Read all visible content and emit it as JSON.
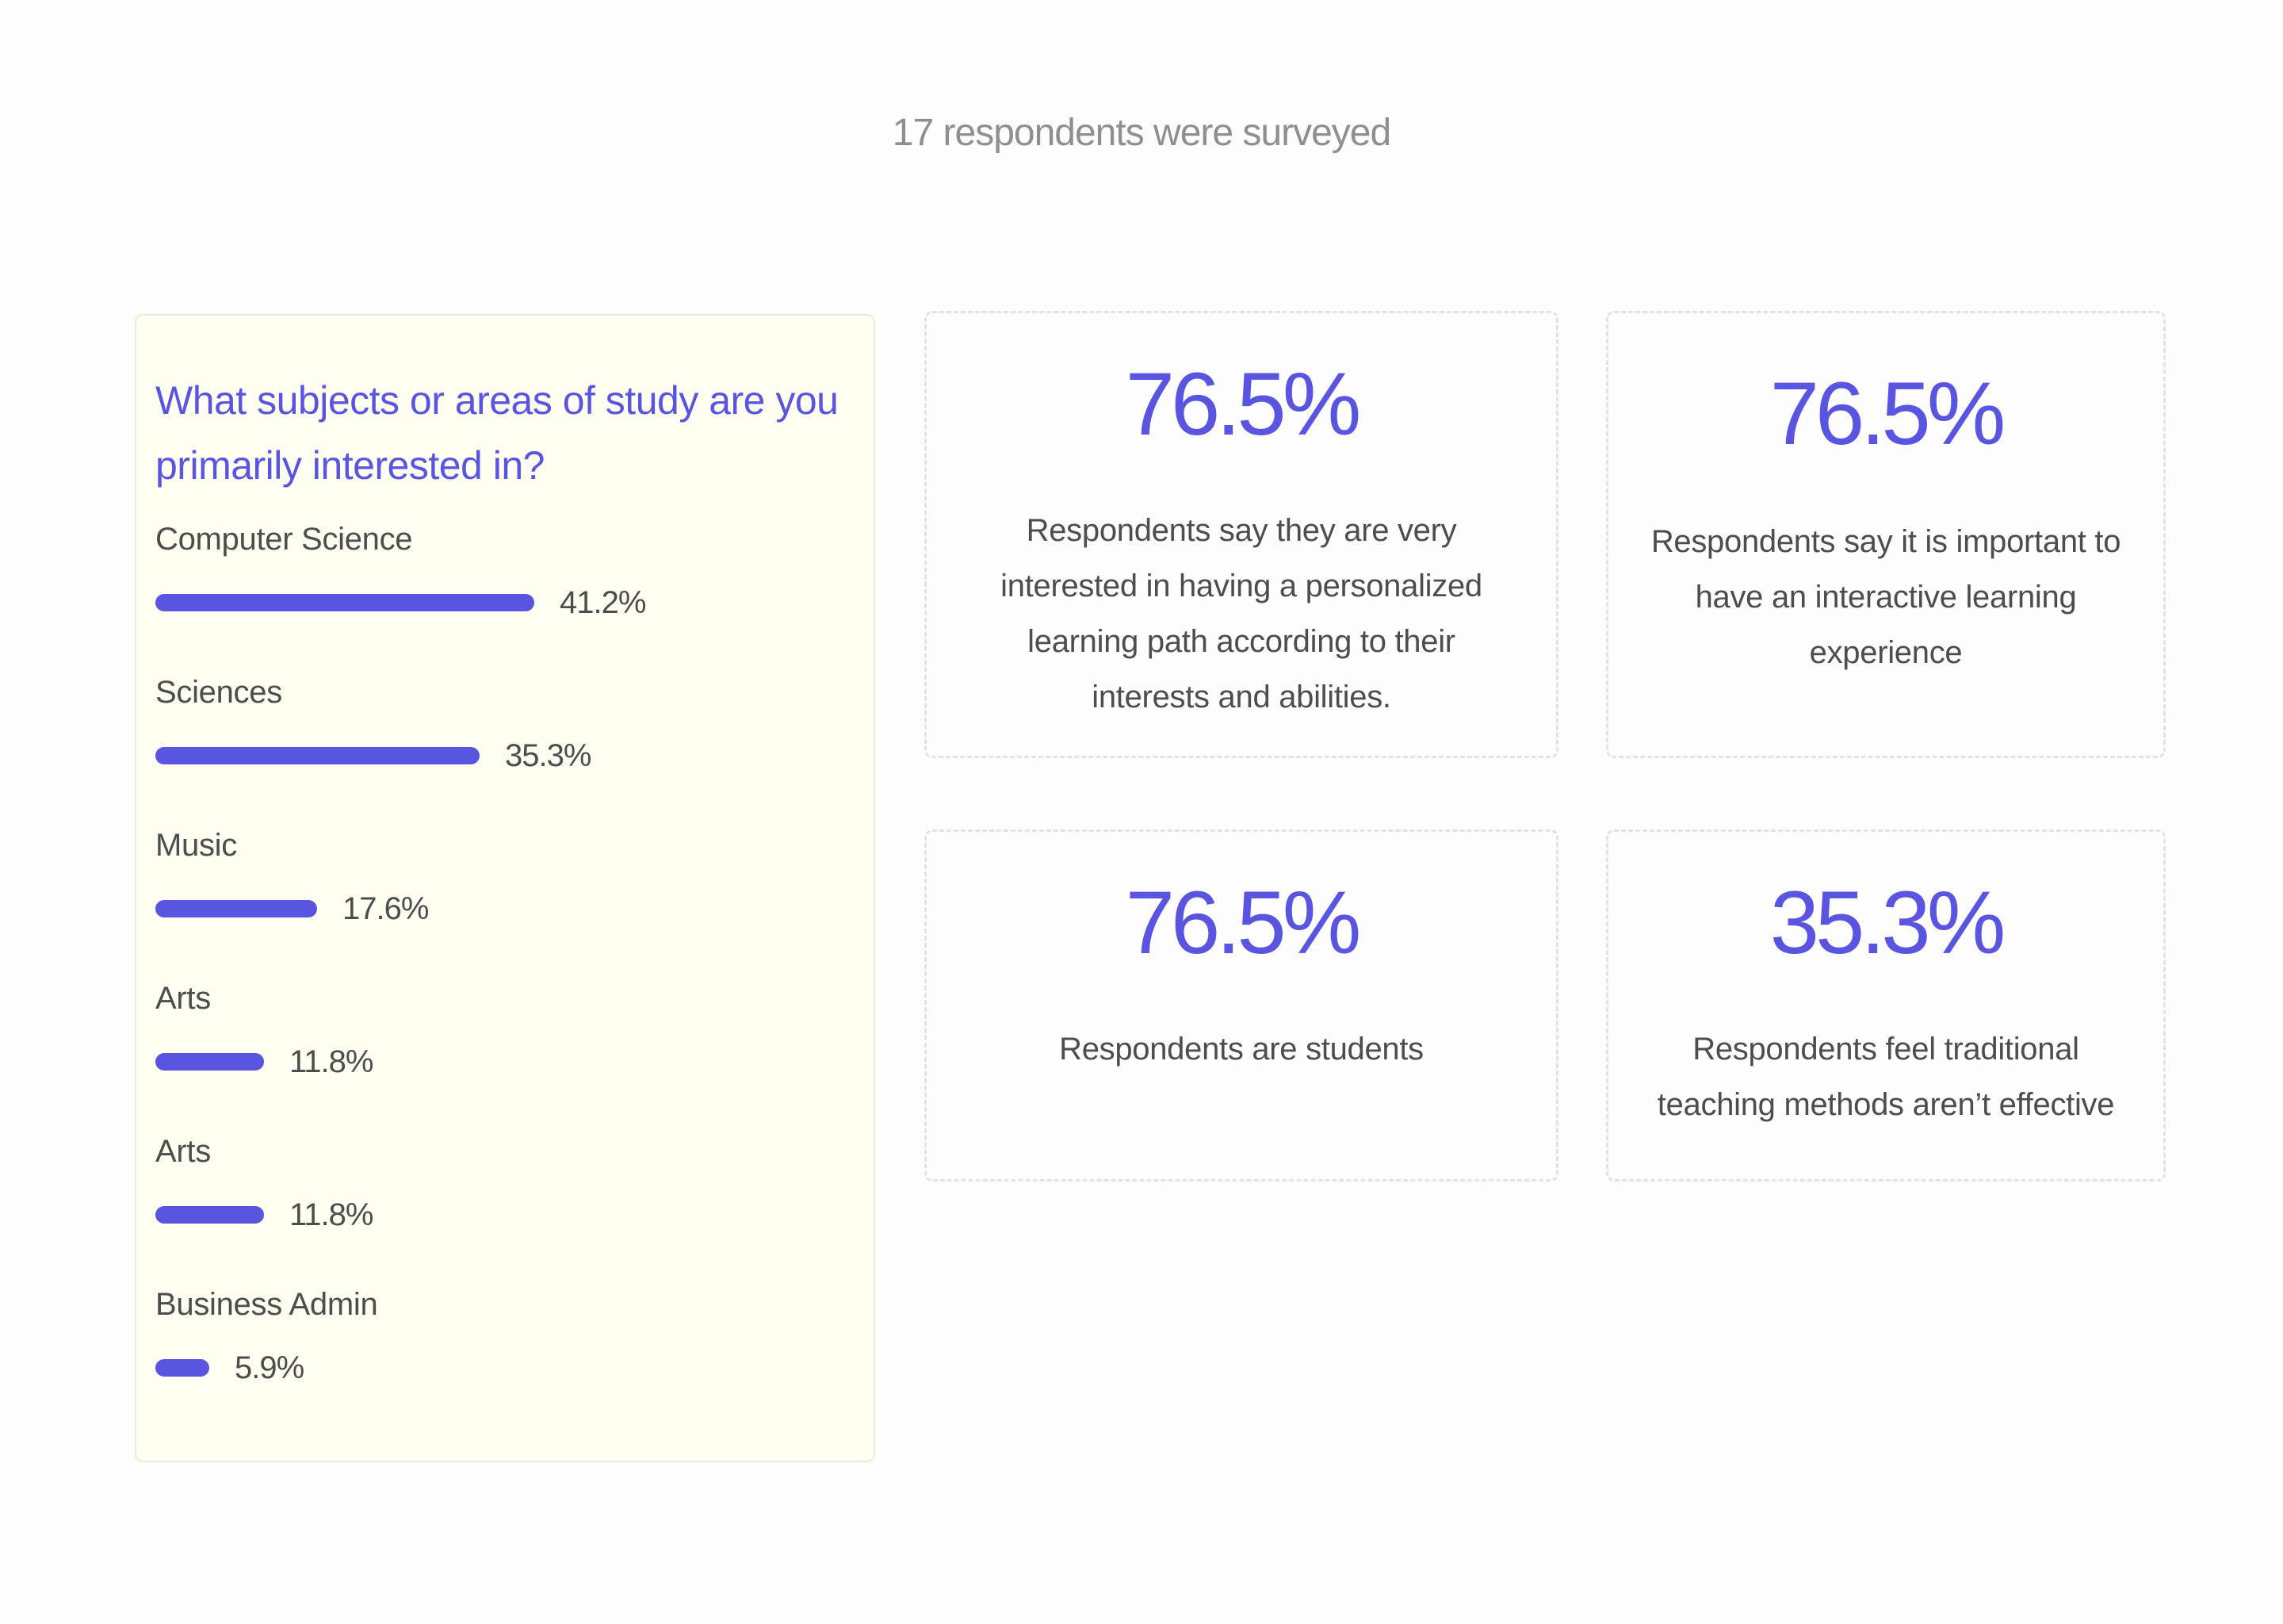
{
  "header": {
    "summary": "17 respondents were surveyed"
  },
  "question": {
    "title": "What subjects or areas of study are you primarily interested in?",
    "accent_color": "#5a55e0",
    "options": [
      {
        "label": "Computer Science",
        "value": 41.2,
        "value_label": "41.2%"
      },
      {
        "label": "Sciences",
        "value": 35.3,
        "value_label": "35.3%"
      },
      {
        "label": "Music",
        "value": 17.6,
        "value_label": "17.6%"
      },
      {
        "label": "Arts",
        "value": 11.8,
        "value_label": "11.8%"
      },
      {
        "label": "Arts",
        "value": 11.8,
        "value_label": "11.8%"
      },
      {
        "label": "Business Admin",
        "value": 5.9,
        "value_label": "5.9%"
      }
    ]
  },
  "stats": [
    {
      "value": "76.5%",
      "description": "Respondents say they are very interested in having a personalized learning path according to their interests and abilities."
    },
    {
      "value": "76.5%",
      "description": "Respondents say it is important to have an interactive learning experience"
    },
    {
      "value": "76.5%",
      "description": "Respondents are students"
    },
    {
      "value": "35.3%",
      "description": "Respondents feel traditional teaching methods aren’t effective"
    }
  ]
}
